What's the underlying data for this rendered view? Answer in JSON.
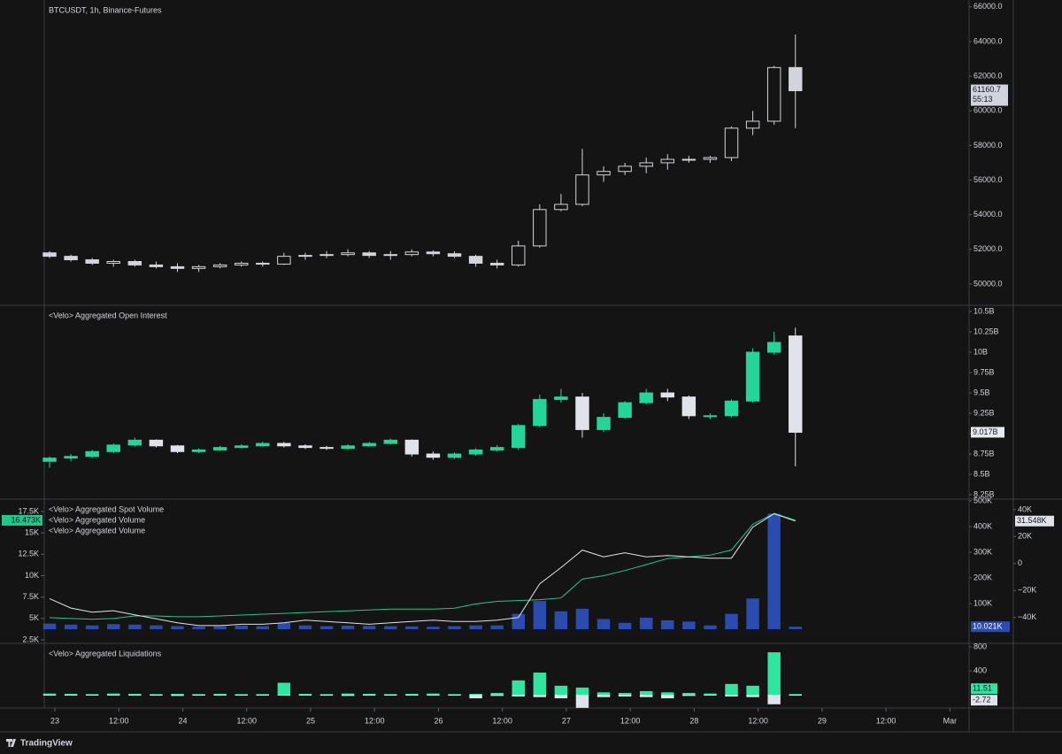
{
  "chart_data": [
    {
      "type": "candlestick",
      "title": "BTCUSDT, 1h, Binance-Futures",
      "x": [
        -1,
        3,
        7,
        11,
        15,
        19,
        23,
        27,
        31,
        35,
        39,
        43,
        47,
        51,
        55,
        59,
        63,
        67,
        71,
        75,
        79,
        83,
        87,
        91,
        95,
        99,
        103,
        107,
        111,
        115,
        119,
        123,
        127,
        131,
        135,
        139
      ],
      "open": [
        51800,
        51600,
        51400,
        51200,
        51300,
        51100,
        51000,
        50900,
        51000,
        51100,
        51200,
        51150,
        51600,
        51650,
        51700,
        51800,
        51650,
        51700,
        51850,
        51750,
        51600,
        51200,
        51100,
        52200,
        54300,
        54600,
        56300,
        56500,
        56800,
        57000,
        57200,
        57200,
        57300,
        59000,
        59400,
        62500
      ],
      "high": [
        51900,
        51700,
        51500,
        51400,
        51400,
        51300,
        51200,
        51100,
        51200,
        51300,
        51300,
        51800,
        51800,
        51900,
        52000,
        51900,
        51900,
        52000,
        51950,
        51900,
        51700,
        51400,
        52500,
        54600,
        55200,
        57800,
        56800,
        57000,
        57300,
        57500,
        57400,
        57400,
        59100,
        60000,
        62600,
        64400
      ],
      "low": [
        51500,
        51300,
        51100,
        51000,
        51000,
        50900,
        50700,
        50700,
        50900,
        51000,
        51000,
        51100,
        51400,
        51500,
        51600,
        51500,
        51400,
        51600,
        51600,
        51500,
        51000,
        50900,
        51000,
        52100,
        54200,
        54500,
        55900,
        56300,
        56400,
        56600,
        57000,
        57000,
        57100,
        58600,
        59200,
        59000
      ],
      "close": [
        51600,
        51400,
        51200,
        51300,
        51100,
        51000,
        50900,
        51000,
        51100,
        51200,
        51150,
        51600,
        51650,
        51700,
        51800,
        51650,
        51700,
        51850,
        51750,
        51600,
        51200,
        51100,
        52200,
        54300,
        54600,
        56300,
        56500,
        56800,
        57000,
        57200,
        57200,
        57300,
        59000,
        59400,
        62500,
        61160.7
      ],
      "countdown": "55:13",
      "up_color": "#d1d4dc",
      "down_color": "#d1d4dc",
      "hollow_up": true,
      "xlim": [
        -2,
        171.6
      ],
      "ylim": [
        48770,
        66400
      ],
      "yticks": [
        {
          "value": 50000,
          "label": "50000.0"
        },
        {
          "value": 52000,
          "label": "52000.0"
        },
        {
          "value": 54000,
          "label": "54000.0"
        },
        {
          "value": 56000,
          "label": "56000.0"
        },
        {
          "value": 58000,
          "label": "58000.0"
        },
        {
          "value": 60000,
          "label": "60000.0"
        },
        {
          "value": 62000,
          "label": "62000.0"
        },
        {
          "value": 64000,
          "label": "64000.0"
        },
        {
          "value": 66000,
          "label": "66000.0"
        }
      ]
    },
    {
      "type": "candlestick",
      "title": "<Velo> Aggregated Open Interest",
      "x": [
        -1,
        3,
        7,
        11,
        15,
        19,
        23,
        27,
        31,
        35,
        39,
        43,
        47,
        51,
        55,
        59,
        63,
        67,
        71,
        75,
        79,
        83,
        87,
        91,
        95,
        99,
        103,
        107,
        111,
        115,
        119,
        123,
        127,
        131,
        135,
        139
      ],
      "open": [
        8.66,
        8.7,
        8.72,
        8.78,
        8.86,
        8.92,
        8.85,
        8.78,
        8.8,
        8.83,
        8.85,
        8.88,
        8.85,
        8.83,
        8.82,
        8.85,
        8.88,
        8.92,
        8.75,
        8.71,
        8.75,
        8.8,
        8.83,
        9.1,
        9.42,
        9.45,
        9.05,
        9.2,
        9.38,
        9.5,
        9.45,
        9.22,
        9.22,
        9.4,
        10.0,
        10.2
      ],
      "high": [
        8.72,
        8.75,
        8.8,
        8.88,
        8.95,
        8.93,
        8.86,
        8.82,
        8.85,
        8.87,
        8.9,
        8.9,
        8.87,
        8.85,
        8.87,
        8.9,
        8.94,
        8.93,
        8.78,
        8.77,
        8.82,
        8.86,
        9.12,
        9.48,
        9.55,
        9.5,
        9.25,
        9.4,
        9.55,
        9.55,
        9.47,
        9.25,
        9.42,
        10.05,
        10.25,
        10.3
      ],
      "low": [
        8.58,
        8.66,
        8.7,
        8.76,
        8.84,
        8.83,
        8.76,
        8.76,
        8.79,
        8.82,
        8.84,
        8.83,
        8.81,
        8.8,
        8.8,
        8.84,
        8.87,
        8.72,
        8.68,
        8.69,
        8.73,
        8.78,
        8.8,
        9.08,
        9.38,
        8.95,
        9.02,
        9.18,
        9.36,
        9.4,
        9.18,
        9.18,
        9.2,
        9.38,
        9.97,
        8.6
      ],
      "close": [
        8.7,
        8.72,
        8.78,
        8.86,
        8.92,
        8.85,
        8.78,
        8.8,
        8.83,
        8.85,
        8.88,
        8.85,
        8.83,
        8.82,
        8.85,
        8.88,
        8.92,
        8.75,
        8.71,
        8.75,
        8.8,
        8.83,
        9.1,
        9.42,
        9.45,
        9.05,
        9.2,
        9.38,
        9.5,
        9.45,
        9.22,
        9.22,
        9.4,
        10.0,
        10.12,
        9.017
      ],
      "last_value_label": "9.017B",
      "up_color": "#22d69a",
      "down_color": "#e0e3eb",
      "xlim": [
        -2,
        171.6
      ],
      "ylim": [
        8.196,
        10.576
      ],
      "yticks": [
        {
          "value": 8.25,
          "label": "8.25B"
        },
        {
          "value": 8.5,
          "label": "8.5B"
        },
        {
          "value": 8.75,
          "label": "8.75B"
        },
        {
          "value": 9,
          "label": "9B"
        },
        {
          "value": 9.25,
          "label": "9.25B"
        },
        {
          "value": 9.5,
          "label": "9.5B"
        },
        {
          "value": 9.75,
          "label": "9.75B"
        },
        {
          "value": 10,
          "label": "10B"
        },
        {
          "value": 10.25,
          "label": "10.25B"
        },
        {
          "value": 10.5,
          "label": "10.5B"
        }
      ]
    },
    {
      "type": "combo",
      "x": [
        -1,
        3,
        7,
        11,
        15,
        19,
        23,
        27,
        31,
        35,
        39,
        43,
        47,
        51,
        55,
        59,
        63,
        67,
        71,
        75,
        79,
        83,
        87,
        91,
        95,
        99,
        103,
        107,
        111,
        115,
        119,
        123,
        127,
        131,
        135,
        139
      ],
      "series": [
        {
          "name": "<Velo> Aggregated Spot Volume",
          "kind": "bar",
          "axis": "y2",
          "color": "#2a4bb0",
          "last_label": "10.021K",
          "values": [
            22,
            18,
            15,
            20,
            18,
            15,
            12,
            10,
            12,
            14,
            12,
            25,
            15,
            12,
            14,
            13,
            12,
            11,
            10,
            12,
            15,
            15,
            60,
            110,
            70,
            80,
            40,
            25,
            45,
            35,
            30,
            15,
            60,
            120,
            450,
            10.021
          ]
        },
        {
          "name": "<Velo> Aggregated Volume",
          "kind": "line",
          "axis": "y",
          "color": "#1fc98a",
          "last_label": "16.473K",
          "values": [
            5.1,
            5.0,
            4.9,
            5.0,
            5.3,
            5.3,
            5.2,
            5.2,
            5.3,
            5.4,
            5.5,
            5.6,
            5.7,
            5.8,
            5.9,
            6.0,
            6.1,
            6.1,
            6.1,
            6.2,
            6.7,
            7.0,
            7.1,
            7.2,
            7.4,
            9.6,
            10.0,
            10.6,
            11.3,
            12.0,
            12.2,
            12.4,
            13.0,
            16.0,
            17.3,
            16.473
          ]
        },
        {
          "name": "<Velo> Aggregated Volume",
          "kind": "line",
          "axis": "y3",
          "color": "#e0e3eb",
          "last_label": "31.548K",
          "values": [
            -26,
            -33,
            -36,
            -35,
            -38,
            -41,
            -44,
            -46,
            -46,
            -45,
            -45,
            -44,
            -42,
            -43,
            -44,
            -45,
            -44,
            -43,
            -42,
            -43,
            -43,
            -42,
            -40,
            -15,
            -3,
            10,
            5,
            8,
            5,
            6,
            5,
            4,
            4,
            27,
            37,
            31.548
          ]
        }
      ],
      "xlim": [
        -2,
        171.6
      ],
      "ylim": [
        2.09,
        18.95
      ],
      "yticks": [
        {
          "value": 2.5,
          "label": "2.5K"
        },
        {
          "value": 5,
          "label": "5K"
        },
        {
          "value": 7.5,
          "label": "7.5K"
        },
        {
          "value": 10,
          "label": "10K"
        },
        {
          "value": 12.5,
          "label": "12.5K"
        },
        {
          "value": 15,
          "label": "15K"
        },
        {
          "value": 17.5,
          "label": "17.5K"
        }
      ],
      "y2lim": [
        -55,
        507
      ],
      "y2ticks": [
        {
          "value": 100,
          "label": "100K"
        },
        {
          "value": 200,
          "label": "200K"
        },
        {
          "value": 300,
          "label": "300K"
        },
        {
          "value": 400,
          "label": "400K"
        },
        {
          "value": 500,
          "label": "500K"
        }
      ],
      "y3lim": [
        -59.2,
        47.8
      ],
      "y3ticks": [
        {
          "value": -40,
          "label": "−40K"
        },
        {
          "value": -20,
          "label": "−20K"
        },
        0,
        {
          "value": 20,
          "label": "20K"
        },
        {
          "value": 40,
          "label": "40K"
        }
      ]
    },
    {
      "type": "bar",
      "title": "<Velo> Aggregated Liquidations",
      "x": [
        -1,
        3,
        7,
        11,
        15,
        19,
        23,
        27,
        31,
        35,
        39,
        43,
        47,
        51,
        55,
        59,
        63,
        67,
        71,
        75,
        79,
        83,
        87,
        91,
        95,
        99,
        103,
        107,
        111,
        115,
        119,
        123,
        127,
        131,
        135,
        139
      ],
      "series": [
        {
          "color": "#2ee6a0",
          "values": [
            20,
            15,
            10,
            20,
            15,
            10,
            15,
            10,
            15,
            10,
            10,
            200,
            15,
            10,
            20,
            15,
            10,
            15,
            20,
            10,
            15,
            30,
            240,
            370,
            150,
            120,
            40,
            30,
            60,
            40,
            30,
            20,
            180,
            150,
            710,
            11.51
          ]
        },
        {
          "color": "#e0e3eb",
          "values": [
            -10,
            -10,
            -15,
            -10,
            -10,
            -15,
            -20,
            -10,
            -10,
            -10,
            -15,
            -10,
            -10,
            -15,
            -20,
            -10,
            -15,
            -10,
            -10,
            -15,
            -60,
            -20,
            -30,
            -40,
            -60,
            -220,
            -40,
            -30,
            -40,
            -60,
            -20,
            -15,
            -30,
            -40,
            -160,
            -2.72
          ]
        }
      ],
      "xlim": [
        -2,
        171.6
      ],
      "ylim": [
        -222,
        859
      ],
      "yticks": [
        400,
        800
      ],
      "xticks": [
        {
          "value": 0,
          "label": "23"
        },
        {
          "value": 12,
          "label": "12:00"
        },
        {
          "value": 24,
          "label": "24"
        },
        {
          "value": 36,
          "label": "12:00"
        },
        {
          "value": 48,
          "label": "25"
        },
        {
          "value": 60,
          "label": "12:00"
        },
        {
          "value": 72,
          "label": "26"
        },
        {
          "value": 84,
          "label": "12:00"
        },
        {
          "value": 96,
          "label": "27"
        },
        {
          "value": 108,
          "label": "12:00"
        },
        {
          "value": 120,
          "label": "28"
        },
        {
          "value": 132,
          "label": "12:00"
        },
        {
          "value": 144,
          "label": "29"
        },
        {
          "value": 156,
          "label": "12:00"
        },
        {
          "value": 168,
          "label": "Mar"
        }
      ]
    }
  ],
  "footer": {
    "brand": "TradingView"
  }
}
